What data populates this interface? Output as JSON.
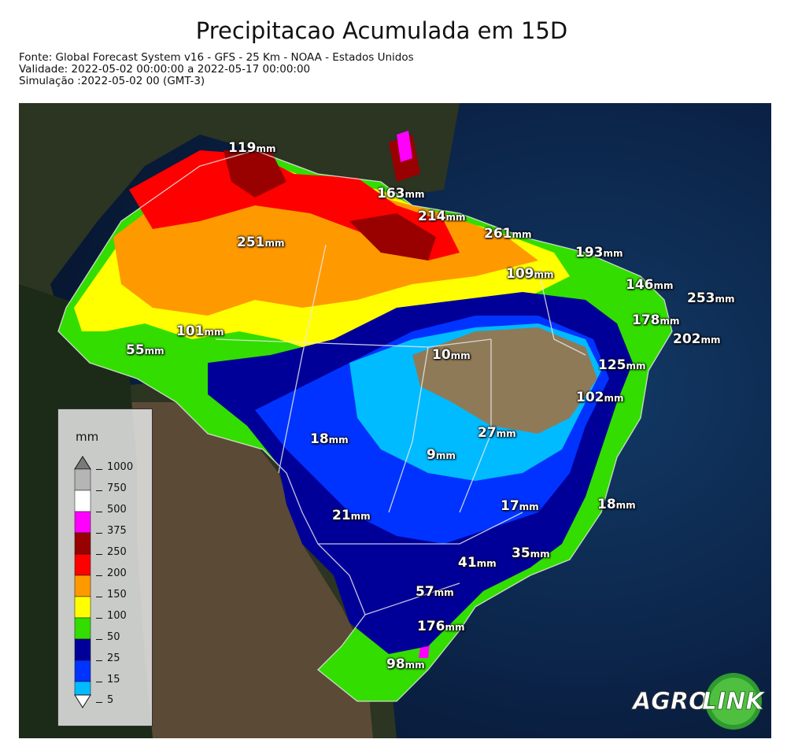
{
  "header": {
    "title": "Precipitacao Acumulada em 15D",
    "source": "Fonte: Global Forecast System v16 - GFS - 25 Km - NOAA - Estados Unidos",
    "validity": "Validade: 2022-05-02 00:00:00 a 2022-05-17 00:00:00",
    "simulation": "Simulação :2022-05-02 00 (GMT-3)"
  },
  "legend": {
    "unit": "mm",
    "levels": [
      {
        "label": "1000",
        "color": "#7a7a7a"
      },
      {
        "label": "750",
        "color": "#b5b5b5"
      },
      {
        "label": "500",
        "color": "#ffffff"
      },
      {
        "label": "375",
        "color": "#ff00ff"
      },
      {
        "label": "250",
        "color": "#990000"
      },
      {
        "label": "200",
        "color": "#ff0000"
      },
      {
        "label": "150",
        "color": "#ff9900"
      },
      {
        "label": "100",
        "color": "#ffff00"
      },
      {
        "label": "50",
        "color": "#33dd00"
      },
      {
        "label": "25",
        "color": "#000099"
      },
      {
        "label": "15",
        "color": "#0033ff"
      },
      {
        "label": "5",
        "color": "#00bbff"
      }
    ]
  },
  "map_labels": [
    {
      "value": "119",
      "unit": "mm"
    },
    {
      "value": "163",
      "unit": "mm"
    },
    {
      "value": "214",
      "unit": "mm"
    },
    {
      "value": "261",
      "unit": "mm"
    },
    {
      "value": "251",
      "unit": "mm"
    },
    {
      "value": "193",
      "unit": "mm"
    },
    {
      "value": "109",
      "unit": "mm"
    },
    {
      "value": "146",
      "unit": "mm"
    },
    {
      "value": "253",
      "unit": "mm"
    },
    {
      "value": "178",
      "unit": "mm"
    },
    {
      "value": "202",
      "unit": "mm"
    },
    {
      "value": "101",
      "unit": "mm"
    },
    {
      "value": "55",
      "unit": "mm"
    },
    {
      "value": "10",
      "unit": "mm"
    },
    {
      "value": "125",
      "unit": "mm"
    },
    {
      "value": "102",
      "unit": "mm"
    },
    {
      "value": "18",
      "unit": "mm"
    },
    {
      "value": "27",
      "unit": "mm"
    },
    {
      "value": "9",
      "unit": "mm"
    },
    {
      "value": "17",
      "unit": "mm"
    },
    {
      "value": "18",
      "unit": "mm"
    },
    {
      "value": "21",
      "unit": "mm"
    },
    {
      "value": "35",
      "unit": "mm"
    },
    {
      "value": "41",
      "unit": "mm"
    },
    {
      "value": "57",
      "unit": "mm"
    },
    {
      "value": "176",
      "unit": "mm"
    },
    {
      "value": "98",
      "unit": "mm"
    }
  ],
  "logo": {
    "part1": "AGRO",
    "part2": "LINK"
  }
}
